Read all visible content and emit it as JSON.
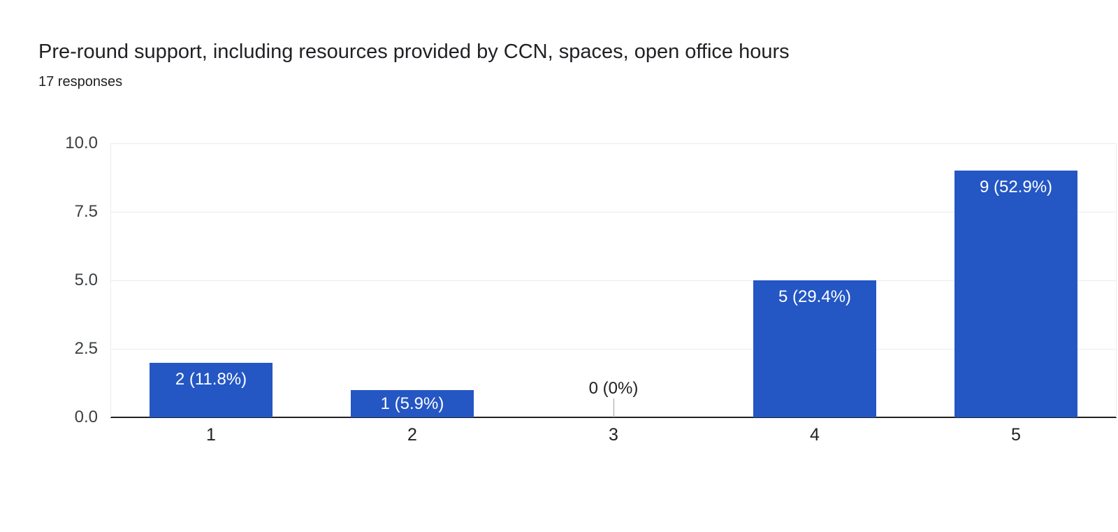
{
  "header": {
    "title": "Pre-round support, including resources provided by CCN, spaces, open office hours",
    "responses": "17 responses"
  },
  "chart_data": {
    "type": "bar",
    "title": "Pre-round support, including resources provided by CCN, spaces, open office hours",
    "subtitle": "17 responses",
    "total_responses": 17,
    "categories": [
      "1",
      "2",
      "3",
      "4",
      "5"
    ],
    "values": [
      2,
      1,
      0,
      5,
      9
    ],
    "data_labels": [
      "2 (11.8%)",
      "1 (5.9%)",
      "0 (0%)",
      "5 (29.4%)",
      "9 (52.9%)"
    ],
    "xlabel": "",
    "ylabel": "",
    "ylim": [
      0,
      10
    ],
    "yticks": [
      0.0,
      2.5,
      5.0,
      7.5,
      10.0
    ],
    "ytick_labels": [
      "0.0",
      "2.5",
      "5.0",
      "7.5",
      "10.0"
    ],
    "grid": true,
    "legend": false,
    "colors": {
      "bar": "#2456c4",
      "label_inside_bar": "#ffffff",
      "label_zero": "#202124",
      "gridline": "#ebebeb",
      "axis_line": "#212121",
      "tick_text": "#3c4043"
    }
  }
}
